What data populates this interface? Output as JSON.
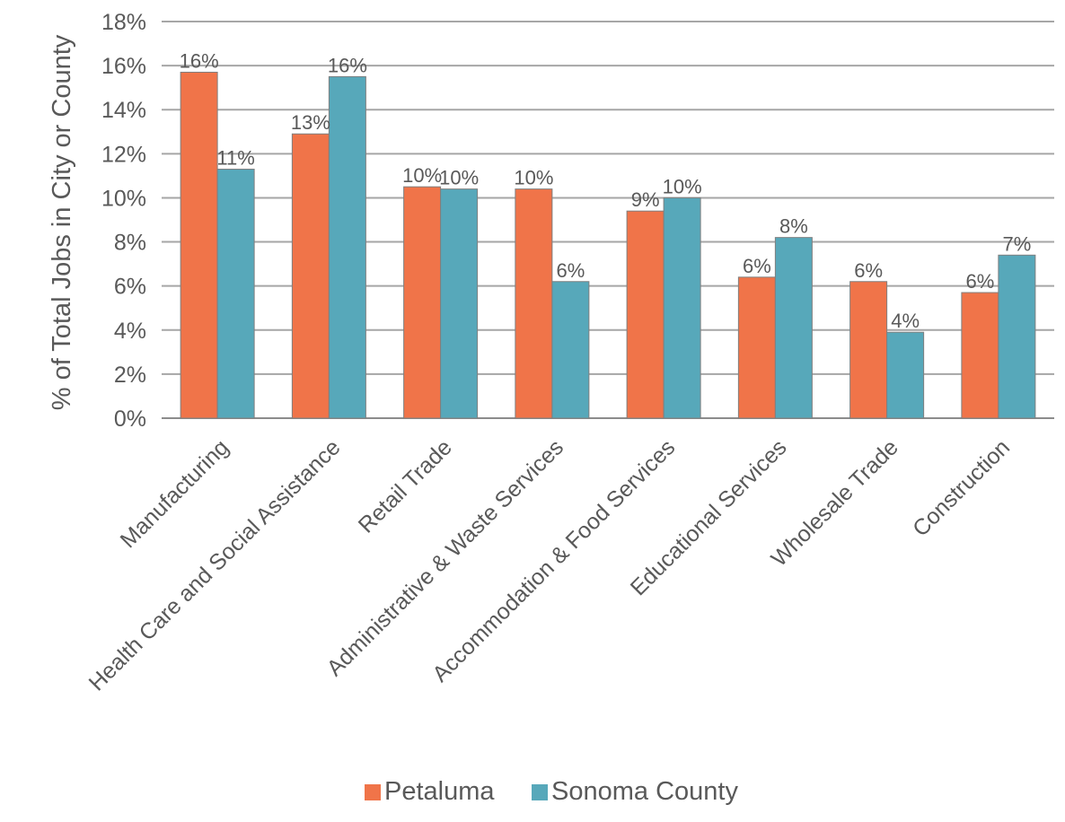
{
  "chart_data": {
    "type": "bar",
    "title": "",
    "xlabel": "",
    "ylabel": "% of Total Jobs in City or County",
    "ylim": [
      0,
      18
    ],
    "y_ticks": [
      "0%",
      "2%",
      "4%",
      "6%",
      "8%",
      "10%",
      "12%",
      "14%",
      "16%",
      "18%"
    ],
    "grid": true,
    "legend_position": "bottom",
    "categories": [
      "Manufacturing",
      "Health Care and Social Assistance",
      "Retail Trade",
      "Administrative & Waste Services",
      "Accommodation & Food Services",
      "Educational Services",
      "Wholesale Trade",
      "Construction"
    ],
    "series": [
      {
        "name": "Petaluma",
        "color": "#f07449",
        "values": [
          15.7,
          12.9,
          10.5,
          10.4,
          9.4,
          6.4,
          6.2,
          5.7
        ],
        "labels": [
          "16%",
          "13%",
          "10%",
          "10%",
          "9%",
          "6%",
          "6%",
          "6%"
        ]
      },
      {
        "name": "Sonoma County",
        "color": "#57a8ba",
        "values": [
          11.3,
          15.5,
          10.4,
          6.2,
          10.0,
          8.2,
          3.9,
          7.4
        ],
        "labels": [
          "11%",
          "16%",
          "10%",
          "6%",
          "10%",
          "8%",
          "4%",
          "7%"
        ]
      }
    ]
  }
}
